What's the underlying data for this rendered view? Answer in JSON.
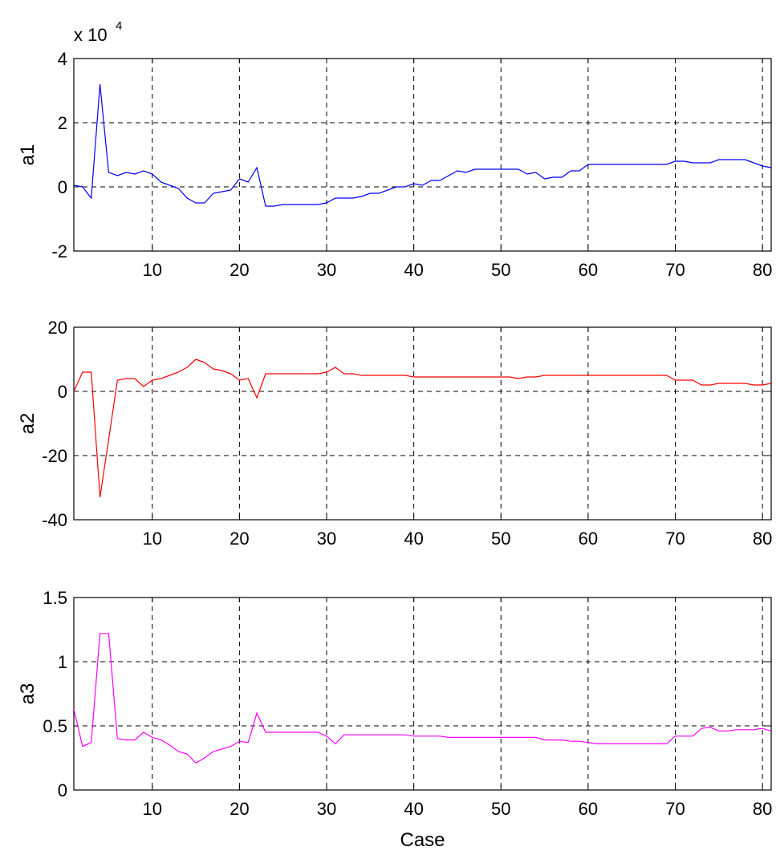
{
  "chart_data": [
    {
      "type": "line",
      "ylabel": "a1",
      "xlabel": "",
      "exponent_label": "x 10",
      "exponent_power": "4",
      "xlim": [
        1,
        81
      ],
      "ylim": [
        -2,
        4
      ],
      "xticks": [
        10,
        20,
        30,
        40,
        50,
        60,
        70,
        80
      ],
      "yticks": [
        -2,
        0,
        2,
        4
      ],
      "grid": true,
      "color": "#0000ff",
      "series": [
        {
          "x": [
            1,
            2,
            3,
            4,
            5,
            6,
            7,
            8,
            9,
            10,
            11,
            12,
            13,
            14,
            15,
            16,
            17,
            18,
            19,
            20,
            21,
            22,
            23,
            24,
            25,
            26,
            27,
            28,
            29,
            30,
            31,
            32,
            33,
            34,
            35,
            36,
            37,
            38,
            39,
            40,
            41,
            42,
            43,
            44,
            45,
            46,
            47,
            48,
            49,
            50,
            51,
            52,
            53,
            54,
            55,
            56,
            57,
            58,
            59,
            60,
            61,
            62,
            63,
            64,
            65,
            66,
            67,
            68,
            69,
            70,
            71,
            72,
            73,
            74,
            75,
            76,
            77,
            78,
            79,
            80,
            81
          ],
          "values": [
            0.05,
            0.0,
            -0.35,
            3.2,
            0.45,
            0.35,
            0.45,
            0.4,
            0.5,
            0.4,
            0.15,
            0.05,
            -0.05,
            -0.35,
            -0.5,
            -0.5,
            -0.2,
            -0.15,
            -0.1,
            0.25,
            0.15,
            0.6,
            -0.6,
            -0.6,
            -0.55,
            -0.55,
            -0.55,
            -0.55,
            -0.55,
            -0.5,
            -0.35,
            -0.35,
            -0.35,
            -0.3,
            -0.2,
            -0.2,
            -0.1,
            0.0,
            0.0,
            0.1,
            0.05,
            0.2,
            0.2,
            0.35,
            0.5,
            0.45,
            0.55,
            0.55,
            0.55,
            0.55,
            0.55,
            0.55,
            0.4,
            0.45,
            0.25,
            0.3,
            0.3,
            0.5,
            0.5,
            0.7,
            0.7,
            0.7,
            0.7,
            0.7,
            0.7,
            0.7,
            0.7,
            0.7,
            0.7,
            0.8,
            0.8,
            0.75,
            0.75,
            0.75,
            0.85,
            0.85,
            0.85,
            0.85,
            0.75,
            0.65,
            0.6
          ]
        }
      ]
    },
    {
      "type": "line",
      "ylabel": "a2",
      "xlabel": "",
      "xlim": [
        1,
        81
      ],
      "ylim": [
        -40,
        20
      ],
      "xticks": [
        10,
        20,
        30,
        40,
        50,
        60,
        70,
        80
      ],
      "yticks": [
        -40,
        -20,
        0,
        20
      ],
      "grid": true,
      "color": "#ff0000",
      "series": [
        {
          "x": [
            1,
            2,
            3,
            4,
            5,
            6,
            7,
            8,
            9,
            10,
            11,
            12,
            13,
            14,
            15,
            16,
            17,
            18,
            19,
            20,
            21,
            22,
            23,
            24,
            25,
            26,
            27,
            28,
            29,
            30,
            31,
            32,
            33,
            34,
            35,
            36,
            37,
            38,
            39,
            40,
            41,
            42,
            43,
            44,
            45,
            46,
            47,
            48,
            49,
            50,
            51,
            52,
            53,
            54,
            55,
            56,
            57,
            58,
            59,
            60,
            61,
            62,
            63,
            64,
            65,
            66,
            67,
            68,
            69,
            70,
            71,
            72,
            73,
            74,
            75,
            76,
            77,
            78,
            79,
            80,
            81
          ],
          "values": [
            0,
            6,
            6,
            -33,
            -15,
            3.5,
            4,
            4,
            1.5,
            3.5,
            4,
            5,
            6,
            7.5,
            10,
            9,
            7,
            6.5,
            5.5,
            3.5,
            4,
            -2,
            5.5,
            5.5,
            5.5,
            5.5,
            5.5,
            5.5,
            5.5,
            6,
            7.5,
            5.5,
            5.5,
            5,
            5,
            5,
            5,
            5,
            5,
            4.5,
            4.5,
            4.5,
            4.5,
            4.5,
            4.5,
            4.5,
            4.5,
            4.5,
            4.5,
            4.5,
            4.5,
            4,
            4.5,
            4.5,
            5,
            5,
            5,
            5,
            5,
            5,
            5,
            5,
            5,
            5,
            5,
            5,
            5,
            5,
            5,
            3.5,
            3.5,
            3.5,
            2,
            2,
            2.5,
            2.5,
            2.5,
            2.5,
            2,
            2,
            2.5
          ]
        }
      ]
    },
    {
      "type": "line",
      "ylabel": "a3",
      "xlabel": "Case",
      "xlim": [
        1,
        81
      ],
      "ylim": [
        0,
        1.5
      ],
      "xticks": [
        10,
        20,
        30,
        40,
        50,
        60,
        70,
        80
      ],
      "yticks": [
        0,
        0.5,
        1,
        1.5
      ],
      "grid": true,
      "color": "#ff00ff",
      "series": [
        {
          "x": [
            1,
            2,
            3,
            4,
            5,
            6,
            7,
            8,
            9,
            10,
            11,
            12,
            13,
            14,
            15,
            16,
            17,
            18,
            19,
            20,
            21,
            22,
            23,
            24,
            25,
            26,
            27,
            28,
            29,
            30,
            31,
            32,
            33,
            34,
            35,
            36,
            37,
            38,
            39,
            40,
            41,
            42,
            43,
            44,
            45,
            46,
            47,
            48,
            49,
            50,
            51,
            52,
            53,
            54,
            55,
            56,
            57,
            58,
            59,
            60,
            61,
            62,
            63,
            64,
            65,
            66,
            67,
            68,
            69,
            70,
            71,
            72,
            73,
            74,
            75,
            76,
            77,
            78,
            79,
            80,
            81
          ],
          "values": [
            0.63,
            0.34,
            0.37,
            1.22,
            1.22,
            0.4,
            0.39,
            0.39,
            0.45,
            0.41,
            0.39,
            0.35,
            0.3,
            0.28,
            0.21,
            0.25,
            0.3,
            0.32,
            0.34,
            0.38,
            0.37,
            0.6,
            0.45,
            0.45,
            0.45,
            0.45,
            0.45,
            0.45,
            0.45,
            0.42,
            0.36,
            0.43,
            0.43,
            0.43,
            0.43,
            0.43,
            0.43,
            0.43,
            0.43,
            0.42,
            0.42,
            0.42,
            0.42,
            0.41,
            0.41,
            0.41,
            0.41,
            0.41,
            0.41,
            0.41,
            0.41,
            0.41,
            0.41,
            0.41,
            0.39,
            0.39,
            0.39,
            0.38,
            0.38,
            0.37,
            0.36,
            0.36,
            0.36,
            0.36,
            0.36,
            0.36,
            0.36,
            0.36,
            0.36,
            0.42,
            0.42,
            0.42,
            0.48,
            0.49,
            0.46,
            0.46,
            0.47,
            0.47,
            0.47,
            0.48,
            0.46
          ]
        }
      ]
    }
  ]
}
